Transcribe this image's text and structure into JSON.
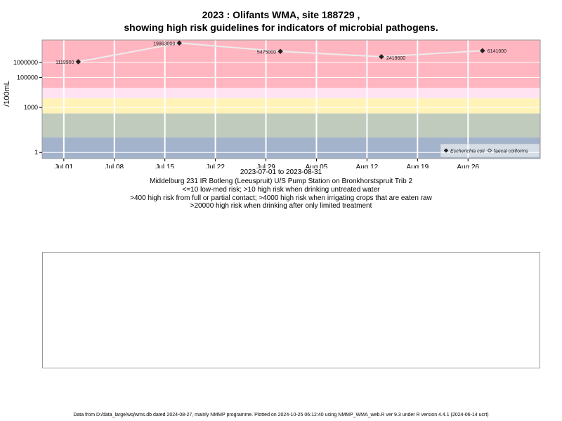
{
  "header": {
    "title_line1": "2023 : Olifants WMA, site 188729 ,",
    "title_line2": "showing high risk guidelines for indicators of microbial pathogens."
  },
  "captions": {
    "date_range": "2023-07-01 to 2023-08-31",
    "site_name": "Middelburg 231 IR Botleng (Leeuspruit) U/S Pump Station on Bronkhorstspruit Trib 2",
    "guideline_1": "<=10 low-med risk; >10 high risk when drinking untreated water",
    "guideline_2": ">400 high risk from full or partial contact; >4000 high risk when irrigating crops that are eaten raw",
    "guideline_3": ">20000 high risk when drinking after only limited treatment"
  },
  "footer": {
    "text": "Data from D:/data_large/wq/wms.db dated 2024-08-27, mainly NMMP programme. Plotted on 2024-10-25 06:12:40 using NMMP_WMA_web.R ver 9.3 under R version 4.4.1 (2024-06-14 ucrt)"
  },
  "chart_data": {
    "type": "scatter",
    "ylabel": "/100mL",
    "y_scale": "log",
    "y_ticks": [
      "1",
      "1000",
      "100000",
      "1000000"
    ],
    "y_tick_values": [
      1,
      1000,
      100000,
      1000000
    ],
    "x_ticks": [
      "Jul 01",
      "Jul 08",
      "Jul 15",
      "Jul 22",
      "Jul 29",
      "Aug 05",
      "Aug 12",
      "Aug 19",
      "Aug 26"
    ],
    "x_tick_dates": [
      "2023-07-01",
      "2023-07-08",
      "2023-07-15",
      "2023-07-22",
      "2023-07-29",
      "2023-08-05",
      "2023-08-12",
      "2023-08-19",
      "2023-08-26"
    ],
    "xlim": [
      "2023-06-28",
      "2023-09-05"
    ],
    "grid": true,
    "legend_placement": "bottom-right",
    "bands": [
      {
        "from": 20000,
        "to": null,
        "color": "#ffb6c1"
      },
      {
        "from": 4000,
        "to": 20000,
        "color": "#ffe3f2"
      },
      {
        "from": 400,
        "to": 4000,
        "color": "#fff3b8"
      },
      {
        "from": 10,
        "to": 400,
        "color": "#c0cbbd"
      },
      {
        "from": null,
        "to": 10,
        "color": "#a2b3cb"
      }
    ],
    "series": [
      {
        "name": "Escherichia coli",
        "marker": "diamond-filled",
        "color": "#222222",
        "line_color": "#ececec",
        "points": [
          {
            "x": "2023-07-03",
            "y": 1119900,
            "label": "1119900"
          },
          {
            "x": "2023-07-17",
            "y": 19863000,
            "label": "19863000"
          },
          {
            "x": "2023-07-31",
            "y": 5475000,
            "label": "5475000"
          },
          {
            "x": "2023-08-14",
            "y": 2419600,
            "label": "2419600"
          },
          {
            "x": "2023-08-28",
            "y": 6141000,
            "label": "6141000"
          }
        ]
      },
      {
        "name": "faecal coliforms",
        "marker": "diamond-open",
        "color": "#222222",
        "points": []
      }
    ]
  }
}
